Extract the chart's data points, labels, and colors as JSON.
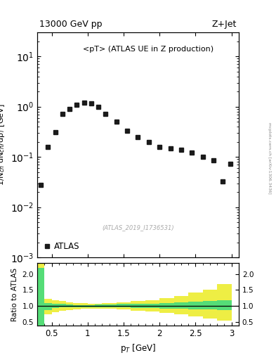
{
  "title_left": "13000 GeV pp",
  "title_right": "Z+Jet",
  "annotation": "<pT> (ATLAS UE in Z production)",
  "watermark": "(ATLAS_2019_I1736531)",
  "ylabel_main": "1/N$_{ch}$ dN$_{ch}$/dp$_{T}$ [GeV]",
  "ylabel_ratio": "Ratio to ATLAS",
  "xlabel": "p$_{T}$ [GeV]",
  "data_x": [
    0.35,
    0.45,
    0.55,
    0.65,
    0.75,
    0.85,
    0.95,
    1.05,
    1.15,
    1.25,
    1.4,
    1.55,
    1.7,
    1.85,
    2.0,
    2.15,
    2.3,
    2.45,
    2.6,
    2.75,
    2.88,
    2.98
  ],
  "data_y": [
    0.028,
    0.16,
    0.31,
    0.72,
    0.9,
    1.1,
    1.2,
    1.15,
    1.0,
    0.72,
    0.5,
    0.33,
    0.25,
    0.2,
    0.16,
    0.15,
    0.14,
    0.12,
    0.1,
    0.085,
    0.033,
    0.072
  ],
  "xlim": [
    0.3,
    3.1
  ],
  "ylim_main_lo": 0.001,
  "ylim_main_hi": 30,
  "ylim_ratio_lo": 0.38,
  "ylim_ratio_hi": 2.35,
  "ratio_yticks": [
    0.5,
    1.0,
    1.5,
    2.0
  ],
  "green_band_x": [
    0.3,
    0.4,
    0.5,
    0.6,
    0.7,
    0.8,
    0.9,
    1.0,
    1.1,
    1.2,
    1.4,
    1.6,
    1.8,
    2.0,
    2.2,
    2.4,
    2.6,
    2.8,
    3.0
  ],
  "green_band_lo": [
    0.3,
    0.87,
    0.93,
    0.95,
    0.97,
    0.97,
    0.97,
    0.97,
    0.97,
    0.96,
    0.95,
    0.94,
    0.93,
    0.92,
    0.91,
    0.9,
    0.89,
    0.88,
    0.88
  ],
  "green_band_hi": [
    2.2,
    1.1,
    1.08,
    1.06,
    1.04,
    1.03,
    1.03,
    1.03,
    1.04,
    1.05,
    1.06,
    1.07,
    1.08,
    1.1,
    1.12,
    1.14,
    1.16,
    1.19,
    1.22
  ],
  "yellow_band_x": [
    0.3,
    0.4,
    0.5,
    0.6,
    0.7,
    0.8,
    0.9,
    1.0,
    1.1,
    1.2,
    1.4,
    1.6,
    1.8,
    2.0,
    2.2,
    2.4,
    2.6,
    2.8,
    3.0
  ],
  "yellow_band_lo": [
    0.3,
    0.73,
    0.81,
    0.85,
    0.88,
    0.9,
    0.91,
    0.92,
    0.92,
    0.91,
    0.89,
    0.86,
    0.83,
    0.79,
    0.74,
    0.67,
    0.6,
    0.54,
    0.5
  ],
  "yellow_band_hi": [
    2.5,
    1.22,
    1.18,
    1.15,
    1.12,
    1.1,
    1.09,
    1.08,
    1.08,
    1.1,
    1.12,
    1.15,
    1.18,
    1.24,
    1.32,
    1.42,
    1.52,
    1.68,
    1.9
  ],
  "marker_color": "#1a1a1a",
  "green_color": "#55dd77",
  "yellow_color": "#eeee44",
  "bg_color": "#ffffff",
  "side_text": "mcplots.cern.ch [arXiv:1306.3436]",
  "xticks": [
    0.5,
    1.0,
    1.5,
    2.0,
    2.5,
    3.0
  ],
  "xtick_labels": [
    "0.5",
    "1",
    "1.5",
    "2",
    "2.5",
    "3"
  ]
}
